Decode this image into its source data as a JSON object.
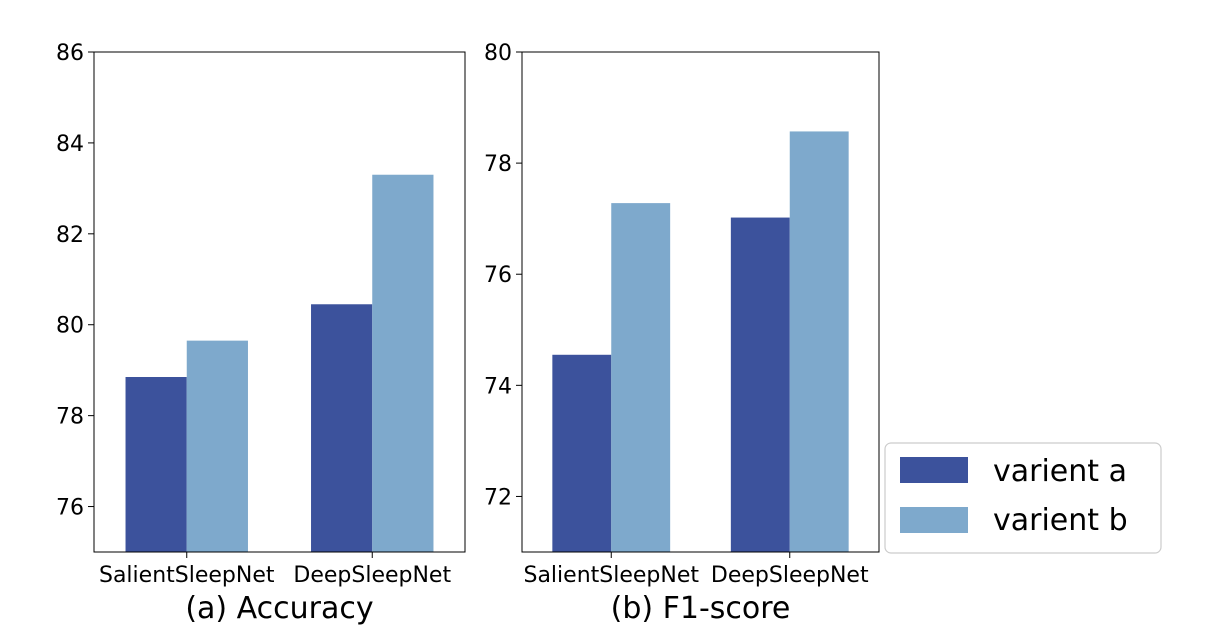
{
  "colors": {
    "varient_a": "#3c529c",
    "varient_b": "#7ea9cc"
  },
  "legend": {
    "location": "lower-right, outside plots",
    "entries": [
      "varient a",
      "varient b"
    ]
  },
  "chart_data": [
    {
      "type": "bar",
      "title": "(a) Accuracy",
      "xlabel": "",
      "ylabel": "",
      "categories": [
        "SalientSleepNet",
        "DeepSleepNet"
      ],
      "series": [
        {
          "name": "varient a",
          "values": [
            78.85,
            80.45
          ]
        },
        {
          "name": "varient b",
          "values": [
            79.65,
            83.3
          ]
        }
      ],
      "ylim": [
        75,
        86
      ],
      "yticks": [
        76,
        78,
        80,
        82,
        84,
        86
      ],
      "grid": false
    },
    {
      "type": "bar",
      "title": "(b) F1-score",
      "xlabel": "",
      "ylabel": "",
      "categories": [
        "SalientSleepNet",
        "DeepSleepNet"
      ],
      "series": [
        {
          "name": "varient a",
          "values": [
            74.55,
            77.02
          ]
        },
        {
          "name": "varient b",
          "values": [
            77.28,
            78.57
          ]
        }
      ],
      "ylim": [
        71,
        80
      ],
      "yticks": [
        72,
        74,
        76,
        78,
        80
      ],
      "grid": false
    }
  ]
}
